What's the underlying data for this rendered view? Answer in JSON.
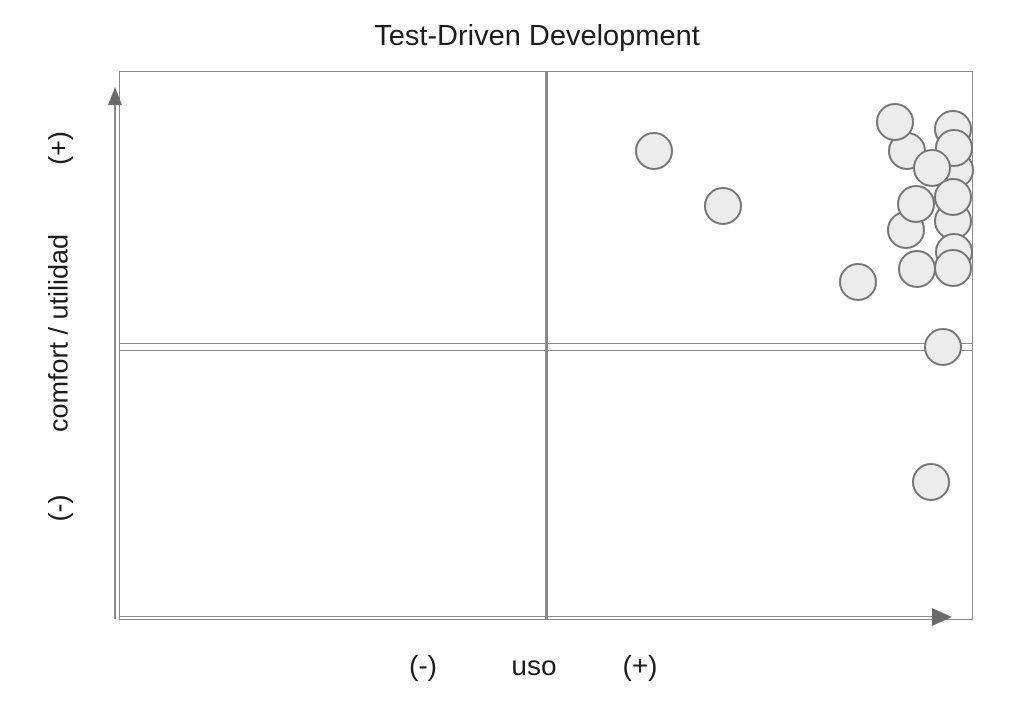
{
  "page": {
    "background": "#ffffff"
  },
  "chart_data": {
    "type": "scatter",
    "variant": "quadrant-chart",
    "title": "Test-Driven Development",
    "xlabel": "uso",
    "ylabel": "comfort / utilidad",
    "x_axis_endpoint_labels": {
      "negative": "(-)",
      "positive": "(+)"
    },
    "y_axis_endpoint_labels": {
      "negative": "(-)",
      "positive": "(+)"
    },
    "axis_ticks": "none (qualitative axes)",
    "grid": "2x2 quadrant dividers at x=0.5 and y=0.5",
    "legend": "none",
    "xlim": [
      0,
      1
    ],
    "ylim": [
      0,
      1
    ],
    "marker_radius_px": 19,
    "points": [
      {
        "x": 0.979,
        "y": 0.819
      },
      {
        "x": 0.977,
        "y": 0.894
      },
      {
        "x": 0.978,
        "y": 0.859
      },
      {
        "x": 0.923,
        "y": 0.854
      },
      {
        "x": 0.909,
        "y": 0.907
      },
      {
        "x": 0.952,
        "y": 0.824
      },
      {
        "x": 0.977,
        "y": 0.726
      },
      {
        "x": 0.977,
        "y": 0.771
      },
      {
        "x": 0.921,
        "y": 0.711
      },
      {
        "x": 0.933,
        "y": 0.757
      },
      {
        "x": 0.978,
        "y": 0.671
      },
      {
        "x": 0.977,
        "y": 0.642
      },
      {
        "x": 0.935,
        "y": 0.64
      },
      {
        "x": 0.865,
        "y": 0.616
      },
      {
        "x": 0.627,
        "y": 0.854
      },
      {
        "x": 0.707,
        "y": 0.755
      },
      {
        "x": 0.965,
        "y": 0.497
      },
      {
        "x": 0.951,
        "y": 0.252
      }
    ]
  },
  "labels": {
    "title": "Test-Driven Development",
    "x_neg": "(-)",
    "x_name": "uso",
    "x_pos": "(+)",
    "y_neg": "(-)",
    "y_name": "comfort / utilidad",
    "y_pos": "(+)"
  },
  "colors": {
    "marker_fill": "#ececec",
    "marker_stroke": "#757575",
    "line": "#8a8a8a",
    "arrowhead": "#6a6a6a",
    "text": "#1c1c1c",
    "background": "#ffffff"
  }
}
